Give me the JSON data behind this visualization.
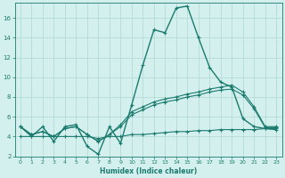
{
  "xlabel": "Humidex (Indice chaleur)",
  "ylabel": "",
  "x": [
    0,
    1,
    2,
    3,
    4,
    5,
    6,
    7,
    8,
    9,
    10,
    11,
    12,
    13,
    14,
    15,
    16,
    17,
    18,
    19,
    20,
    21,
    22,
    23
  ],
  "line_main": [
    5.0,
    4.0,
    5.0,
    3.5,
    5.0,
    5.2,
    3.0,
    2.2,
    5.0,
    3.3,
    7.2,
    11.2,
    14.8,
    14.5,
    17.0,
    17.2,
    14.0,
    11.0,
    9.5,
    9.0,
    5.8,
    5.0,
    4.8,
    4.7
  ],
  "line_upper": [
    5.0,
    4.2,
    4.5,
    4.0,
    4.8,
    5.0,
    4.2,
    3.5,
    4.2,
    5.2,
    6.5,
    7.0,
    7.5,
    7.8,
    8.0,
    8.3,
    8.5,
    8.8,
    9.0,
    9.2,
    8.5,
    7.0,
    5.0,
    5.0
  ],
  "line_mid": [
    5.0,
    4.2,
    4.5,
    4.0,
    4.8,
    5.0,
    4.2,
    3.5,
    4.2,
    5.0,
    6.2,
    6.7,
    7.2,
    7.5,
    7.7,
    8.0,
    8.2,
    8.5,
    8.7,
    8.8,
    8.2,
    6.8,
    4.9,
    4.9
  ],
  "line_flat": [
    4.0,
    4.0,
    4.0,
    4.0,
    4.0,
    4.0,
    4.0,
    3.8,
    4.0,
    4.0,
    4.2,
    4.2,
    4.3,
    4.4,
    4.5,
    4.5,
    4.6,
    4.6,
    4.7,
    4.7,
    4.7,
    4.7,
    4.8,
    4.8
  ],
  "line_color": "#1a7a6e",
  "bg_color": "#d4f0ee",
  "grid_color": "#afd8d4",
  "ylim": [
    2,
    17.5
  ],
  "yticks": [
    2,
    4,
    6,
    8,
    10,
    12,
    14,
    16
  ],
  "xticks": [
    0,
    1,
    2,
    3,
    4,
    5,
    6,
    7,
    8,
    9,
    10,
    11,
    12,
    13,
    14,
    15,
    16,
    17,
    18,
    19,
    20,
    21,
    22,
    23
  ]
}
